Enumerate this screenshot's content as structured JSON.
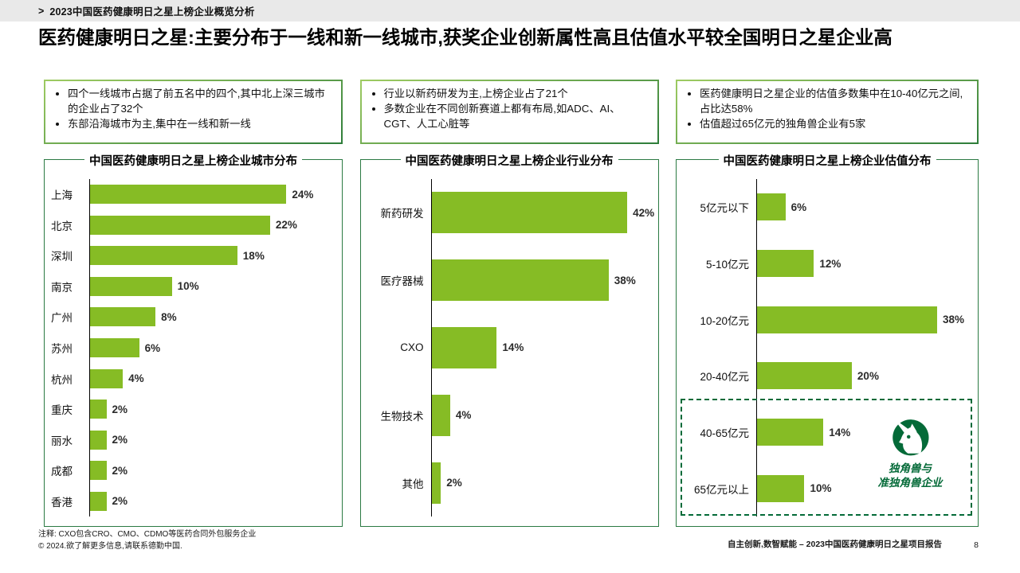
{
  "breadcrumb": {
    "arrow": ">",
    "text": "2023中国医药健康明日之星上榜企业概览分析"
  },
  "title": "医药健康明日之星:主要分布于一线和新一线城市,获奖企业创新属性高且估值水平较全国明日之星企业高",
  "callouts": [
    {
      "bullets": [
        "四个一线城市占据了前五名中的四个,其中北上深三城市的企业占了32个",
        "东部沿海城市为主,集中在一线和新一线"
      ]
    },
    {
      "bullets": [
        "行业以新药研发为主,上榜企业占了21个",
        "多数企业在不同创新赛道上都有布局,如ADC、AI、CGT、人工心脏等"
      ]
    },
    {
      "bullets": [
        "医药健康明日之星企业的估值多数集中在10-40亿元之间,占比达58%",
        "估值超过65亿元的独角兽企业有5家"
      ]
    }
  ],
  "chart_data": [
    {
      "type": "bar",
      "orientation": "horizontal",
      "title": "中国医药健康明日之星上榜企业城市分布",
      "categories": [
        "上海",
        "北京",
        "深圳",
        "南京",
        "广州",
        "苏州",
        "杭州",
        "重庆",
        "丽水",
        "成都",
        "香港"
      ],
      "values": [
        24,
        22,
        18,
        10,
        8,
        6,
        4,
        2,
        2,
        2,
        2
      ],
      "unit": "%",
      "xlim": [
        0,
        30
      ],
      "grid": false,
      "legend": "none"
    },
    {
      "type": "bar",
      "orientation": "horizontal",
      "title": "中国医药健康明日之星上榜企业行业分布",
      "categories": [
        "新药研发",
        "医疗器械",
        "CXO",
        "生物技术",
        "其他"
      ],
      "values": [
        42,
        38,
        14,
        4,
        2
      ],
      "unit": "%",
      "xlim": [
        0,
        47
      ],
      "grid": false,
      "legend": "none"
    },
    {
      "type": "bar",
      "orientation": "horizontal",
      "title": "中国医药健康明日之星上榜企业估值分布",
      "categories": [
        "5亿元以下",
        "5-10亿元",
        "10-20亿元",
        "20-40亿元",
        "40-65亿元",
        "65亿元以上"
      ],
      "values": [
        6,
        12,
        38,
        20,
        14,
        10
      ],
      "unit": "%",
      "xlim": [
        0,
        45
      ],
      "grid": false,
      "legend": "none",
      "annotation": {
        "highlight_categories": [
          "40-65亿元",
          "65亿元以上"
        ],
        "label": "独角兽与 准独角兽企业"
      }
    }
  ],
  "unicorn": {
    "icon": "unicorn-icon",
    "label_line1": "独角兽与",
    "label_line2": "准独角兽企业"
  },
  "footer": {
    "note": "注释: CXO包含CRO、CMO、CDMO等医药合同外包服务企业",
    "copyright": "© 2024.欲了解更多信息,请联系德勤中国.",
    "report": "自主创新,数智赋能 – 2023中国医药健康明日之星项目报告",
    "page": "8"
  },
  "colors": {
    "bar_green": "#86BC25",
    "dark_green": "#046A38",
    "panel_border_green": "#2b7a43",
    "topbar_gray": "#e9e9e9"
  }
}
